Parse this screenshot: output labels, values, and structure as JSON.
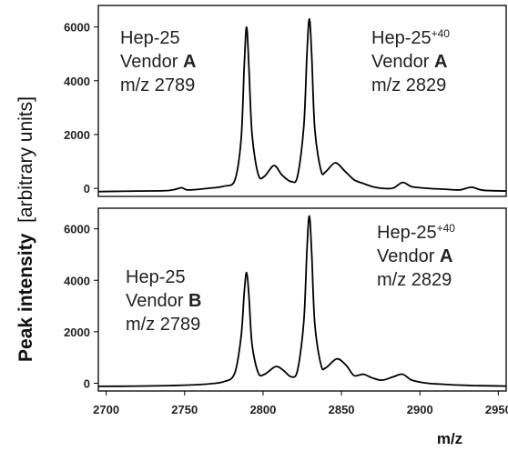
{
  "chart_data": {
    "type": "line",
    "xlabel": "m/z",
    "ylabel_bold": "Peak intensity",
    "ylabel_normal": "[arbitrary units]",
    "xlim": [
      2695,
      2955
    ],
    "xticks": [
      2700,
      2750,
      2800,
      2850,
      2900,
      2950
    ],
    "grid": false,
    "panels": [
      {
        "ylim": [
          -300,
          6800
        ],
        "yticks": [
          0,
          2000,
          4000,
          6000
        ],
        "annotations": [
          {
            "lines": [
              {
                "text": "Hep-25"
              },
              {
                "text": "Vendor ",
                "bold": "A"
              },
              {
                "text": "m/z 2789"
              }
            ]
          },
          {
            "lines": [
              {
                "text": "Hep-25",
                "sup": "+40"
              },
              {
                "text": "Vendor ",
                "bold": "A"
              },
              {
                "text": "m/z 2829"
              }
            ]
          }
        ],
        "series": [
          {
            "x": [
              2695,
              2720,
              2740,
              2748,
              2752,
              2765,
              2775,
              2782,
              2786,
              2788,
              2789.5,
              2791,
              2793,
              2797,
              2801,
              2807,
              2812,
              2818,
              2822,
              2826,
              2828,
              2829.5,
              2831,
              2833,
              2837,
              2840,
              2846,
              2852,
              2858,
              2864,
              2870,
              2876,
              2883,
              2889,
              2895,
              2905,
              2915,
              2925,
              2933,
              2940,
              2955
            ],
            "y": [
              -120,
              -100,
              -80,
              20,
              -60,
              0,
              80,
              300,
              1800,
              4500,
              6000,
              4500,
              2000,
              500,
              450,
              850,
              500,
              250,
              450,
              2300,
              5000,
              6300,
              5000,
              2200,
              650,
              620,
              950,
              650,
              320,
              180,
              60,
              0,
              10,
              220,
              60,
              0,
              -30,
              -60,
              40,
              -70,
              -100
            ]
          }
        ]
      },
      {
        "ylim": [
          -300,
          6800
        ],
        "yticks": [
          0,
          2000,
          4000,
          6000
        ],
        "annotations": [
          {
            "lines": [
              {
                "text": "Hep-25"
              },
              {
                "text": "Vendor ",
                "bold": "B"
              },
              {
                "text": "m/z 2789"
              }
            ]
          },
          {
            "lines": [
              {
                "text": "Hep-25",
                "sup": "+40"
              },
              {
                "text": "Vendor ",
                "bold": "A"
              },
              {
                "text": "m/z 2829"
              }
            ]
          }
        ],
        "series": [
          {
            "x": [
              2695,
              2720,
              2740,
              2760,
              2775,
              2782,
              2786,
              2788,
              2789.5,
              2791,
              2793,
              2797,
              2801,
              2808,
              2813,
              2818,
              2822,
              2826,
              2828,
              2829.5,
              2831,
              2833,
              2837,
              2840,
              2847,
              2853,
              2858,
              2864,
              2870,
              2876,
              2883,
              2889,
              2895,
              2905,
              2915,
              2925,
              2935,
              2945,
              2955
            ],
            "y": [
              -120,
              -110,
              -90,
              -50,
              60,
              400,
              1800,
              3500,
              4300,
              3400,
              1500,
              400,
              350,
              650,
              500,
              250,
              500,
              2400,
              5200,
              6500,
              5100,
              2300,
              700,
              600,
              950,
              700,
              300,
              350,
              200,
              120,
              250,
              350,
              120,
              0,
              -40,
              -70,
              -90,
              -100,
              -110
            ]
          }
        ]
      }
    ]
  }
}
